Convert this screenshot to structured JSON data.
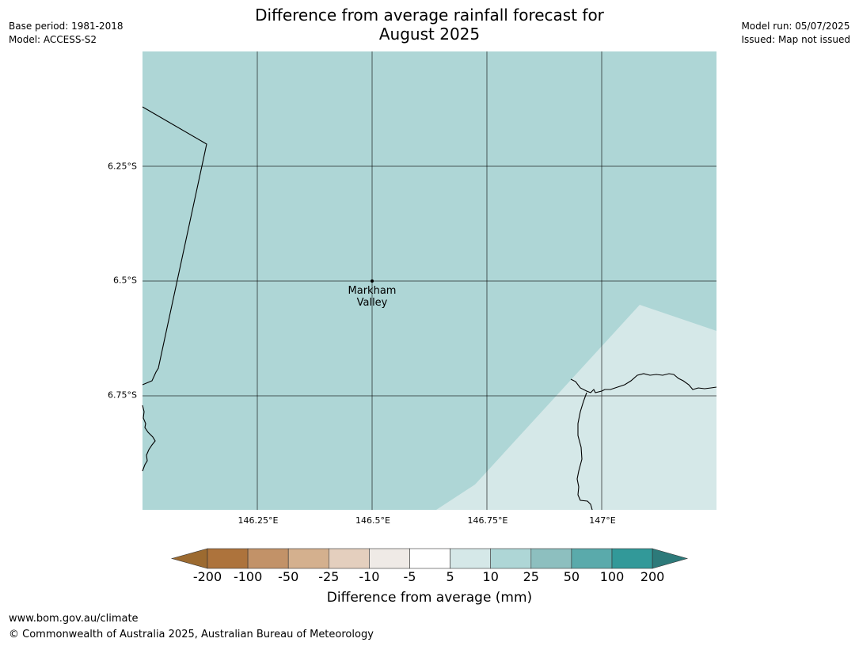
{
  "title": {
    "line1": "Difference from average rainfall forecast for",
    "line2": "August 2025"
  },
  "meta_left": {
    "base_period": "Base period: 1981-2018",
    "model": "Model: ACCESS-S2"
  },
  "meta_right": {
    "model_run": "Model run: 05/07/2025",
    "issued": "Issued: Map not issued"
  },
  "map": {
    "latitude_labels": [
      "6.25°S",
      "6.5°S",
      "6.75°S"
    ],
    "longitude_labels": [
      "146.25°E",
      "146.5°E",
      "146.75°E",
      "147°E"
    ],
    "place": {
      "line1": "Markham",
      "line2": "Valley"
    },
    "colors": {
      "background_category": "#aed6d6",
      "light_category": "#d5e8e8",
      "gridline": "#000000",
      "coastline": "#000000"
    }
  },
  "legend": {
    "title": "Difference from average (mm)",
    "values": [
      "-200",
      "-100",
      "-50",
      "-25",
      "-10",
      "-5",
      "5",
      "10",
      "25",
      "50",
      "100",
      "200"
    ],
    "colors": [
      "#9c6a30",
      "#ad733c",
      "#c29268",
      "#d4b08e",
      "#e4cfbe",
      "#efeae6",
      "#ffffff",
      "#d5e8e8",
      "#aed6d6",
      "#8dbfbf",
      "#5aaaab",
      "#329999",
      "#2d7a7a"
    ]
  },
  "footer": {
    "url": "www.bom.gov.au/climate",
    "copyright": "© Commonwealth of Australia 2025, Australian Bureau of Meteorology"
  }
}
